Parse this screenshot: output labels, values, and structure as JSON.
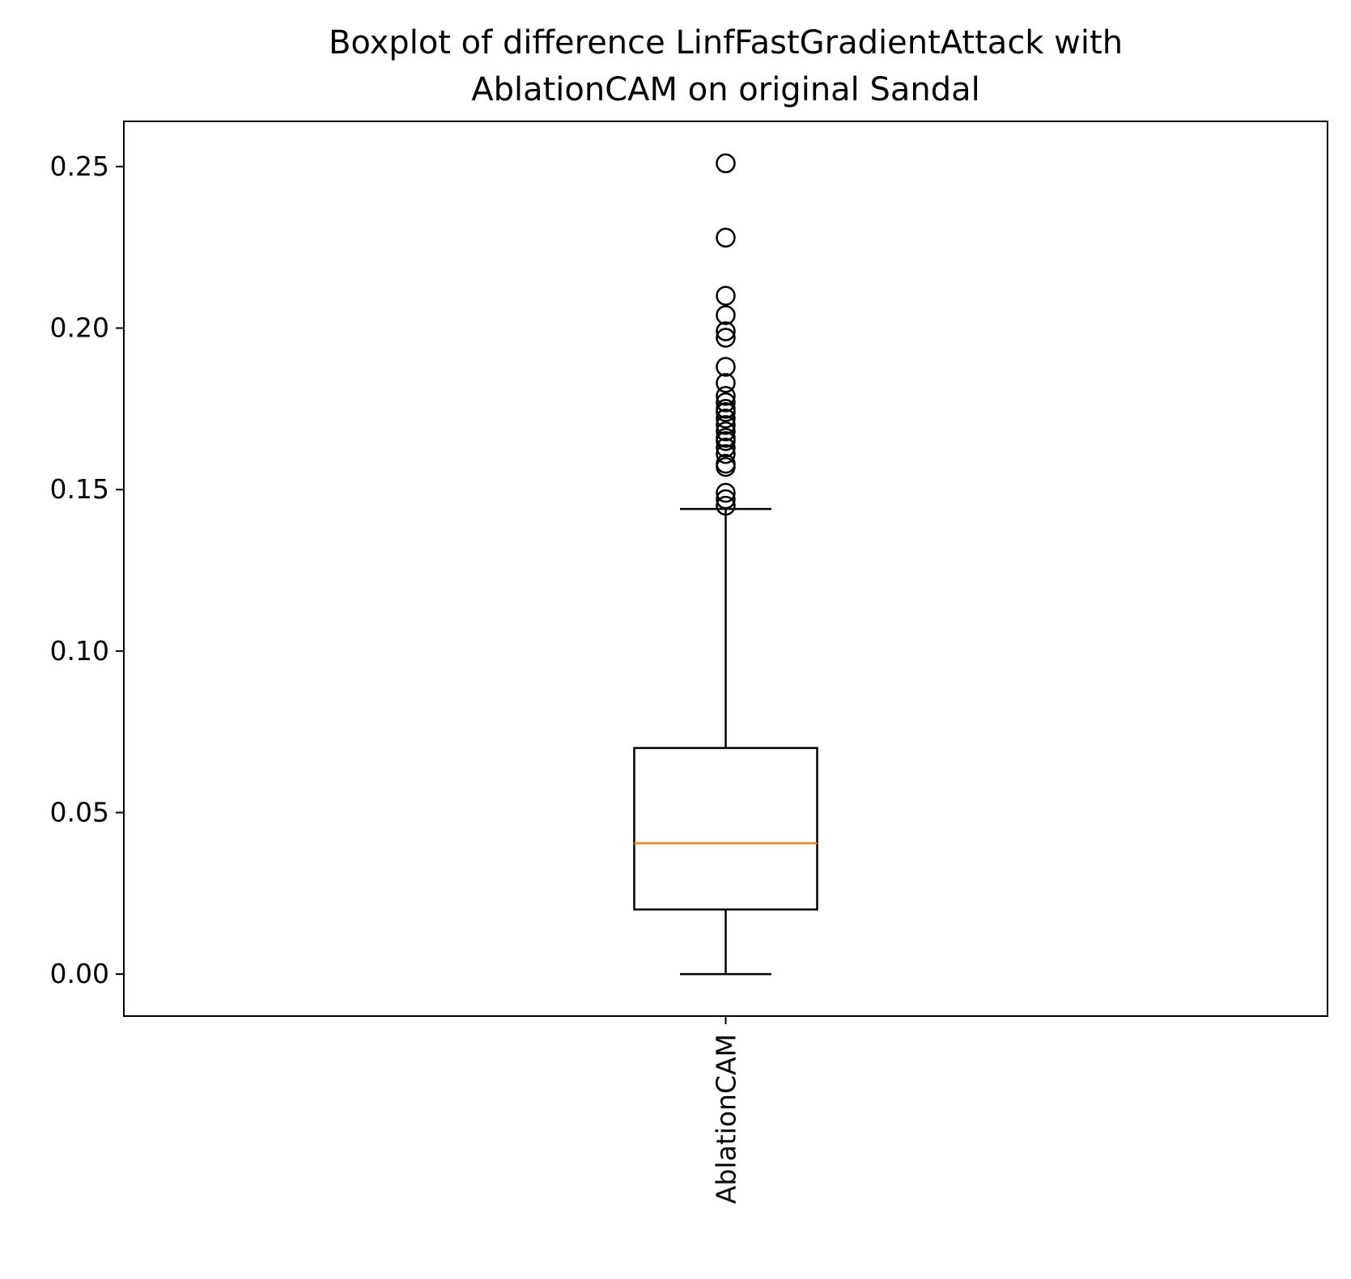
{
  "chart_data": {
    "type": "box",
    "title": "Boxplot of difference LinfFastGradientAttack with\nAblationCAM on original Sandal",
    "xlabel": "",
    "ylabel": "",
    "ylim": [
      -0.013,
      0.264
    ],
    "yticks": [
      0.0,
      0.05,
      0.1,
      0.15,
      0.2,
      0.25
    ],
    "ytick_labels": [
      "0.00",
      "0.05",
      "0.10",
      "0.15",
      "0.20",
      "0.25"
    ],
    "categories": [
      "AblationCAM"
    ],
    "x_label_rotation": "vertical",
    "grid": false,
    "legend": "none",
    "boxes": [
      {
        "category": "AblationCAM",
        "whisker_low": 0.0,
        "q1": 0.02,
        "median": 0.0405,
        "q3": 0.07,
        "whisker_high": 0.144,
        "outliers": [
          0.145,
          0.147,
          0.149,
          0.157,
          0.158,
          0.161,
          0.163,
          0.165,
          0.166,
          0.168,
          0.17,
          0.172,
          0.174,
          0.175,
          0.177,
          0.179,
          0.183,
          0.188,
          0.197,
          0.199,
          0.204,
          0.21,
          0.228,
          0.251
        ]
      }
    ],
    "colors": {
      "box": "#000000",
      "median": "#ff7f0e",
      "outlier_edge": "#000000",
      "axes": "#000000"
    }
  }
}
